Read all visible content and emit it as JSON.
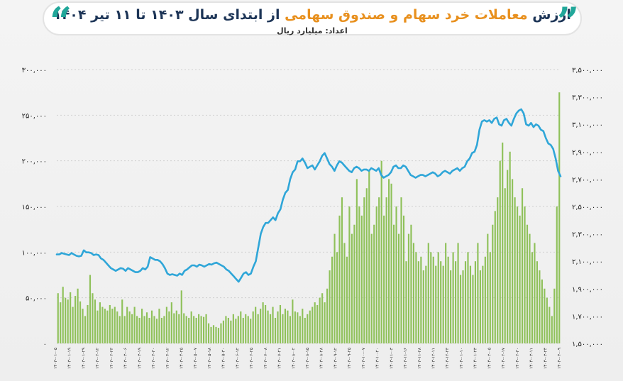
{
  "title": {
    "part1": "ارزش ",
    "part2": "معاملات خرد سهام و صندوق سهامی",
    "part3": " از ابتدای سال ۱۴۰۳ تا ۱۱ تیر ۱۴۰۴"
  },
  "subtitle": "اعداد: میلیارد ریال",
  "colors": {
    "bars": "#8fc15a",
    "line": "#2fa6d8",
    "accent": "#21a79a",
    "title": "#1d3557",
    "highlight": "#e8901e"
  },
  "chart_data": {
    "type": "bar+line",
    "left_axis": {
      "ylim": [
        0,
        300000
      ],
      "ticks": [
        "۰",
        "۵۰,۰۰۰",
        "۱۰۰,۰۰۰",
        "۱۵۰,۰۰۰",
        "۲۰۰,۰۰۰",
        "۲۵۰,۰۰۰",
        "۳۰۰,۰۰۰"
      ]
    },
    "right_axis": {
      "ylim": [
        1500000,
        3500000
      ],
      "ticks": [
        "۱,۵۰۰,۰۰۰",
        "۱,۷۰۰,۰۰۰",
        "۱,۹۰۰,۰۰۰",
        "۲,۱۰۰,۰۰۰",
        "۲,۳۰۰,۰۰۰",
        "۲,۵۰۰,۰۰۰",
        "۲,۷۰۰,۰۰۰",
        "۲,۹۰۰,۰۰۰",
        "۳,۱۰۰,۰۰۰",
        "۳,۳۰۰,۰۰۰",
        "۳,۵۰۰,۰۰۰"
      ]
    },
    "x_tick_labels": [
      "۱۴۰۳-۰۱-۰۵",
      "۱۴۰۳-۰۱-۱۹",
      "۱۴۰۳-۰۱-۲۹",
      "۱۴۰۳-۰۲-۱۲",
      "۱۴۰۳-۰۲-۲۳",
      "۱۴۰۳-۰۳-۰۶",
      "۱۴۰۳-۰۳-۱۹",
      "۱۴۰۳-۰۳-۳۰",
      "۱۴۰۳-۰۴-۱۲",
      "۱۴۰۳-۰۴-۲۵",
      "۱۴۰۳-۰۵-۰۷",
      "۱۴۰۳-۰۵-۱۸",
      "۱۴۰۳-۰۵-۳۰",
      "۱۴۰۳-۰۶-۱۲",
      "۱۴۰۳-۰۶-۲۵",
      "۱۴۰۳-۰۷-۰۸",
      "۱۴۰۳-۰۷-۲۱",
      "۱۴۰۳-۰۸-۰۲",
      "۱۴۰۳-۰۸-۱۵",
      "۱۴۰۳-۰۸-۲۸",
      "۱۴۰۳-۰۹-۱۲",
      "۱۴۰۳-۰۹-۲۵",
      "۱۴۰۳-۱۰-۰۷",
      "۱۴۰۳-۱۰-۲۰",
      "۱۴۰۳-۱۱-۰۳",
      "۱۴۰۳-۱۱-۱۶",
      "۱۴۰۳-۱۱-۲۸",
      "۱۴۰۳-۱۲-۱۱",
      "۱۴۰۳-۱۲-۲۳",
      "۱۴۰۴-۰۱-۱۰",
      "۱۴۰۴-۰۱-۲۳",
      "۱۴۰۴-۰۲-۰۵",
      "۱۴۰۴-۰۲-۱۷",
      "۱۴۰۴-۰۲-۳۰",
      "۱۴۰۴-۰۳-۱۱",
      "۱۴۰۴-۰۳-۲۴",
      "۱۴۰۴-۰۴-۰۹"
    ],
    "series": [
      {
        "type": "bar",
        "axis": "left",
        "values": [
          55000,
          45000,
          62000,
          50000,
          48000,
          56000,
          40000,
          52000,
          60000,
          46000,
          38000,
          30000,
          42000,
          75000,
          55000,
          48000,
          36000,
          45000,
          40000,
          38000,
          36000,
          42000,
          38000,
          40000,
          35000,
          30000,
          48000,
          30000,
          40000,
          35000,
          32000,
          40000,
          30000,
          28000,
          38000,
          30000,
          34000,
          28000,
          36000,
          30000,
          27000,
          38000,
          28000,
          30000,
          40000,
          35000,
          45000,
          33000,
          36000,
          32000,
          58000,
          33000,
          30000,
          28000,
          35000,
          30000,
          28000,
          32000,
          30000,
          29000,
          32000,
          22000,
          18000,
          20000,
          18000,
          17000,
          22000,
          25000,
          30000,
          28000,
          25000,
          32000,
          27000,
          30000,
          35000,
          28000,
          32000,
          30000,
          27000,
          35000,
          40000,
          32000,
          38000,
          45000,
          42000,
          36000,
          32000,
          40000,
          28000,
          35000,
          42000,
          32000,
          38000,
          36000,
          30000,
          48000,
          35000,
          34000,
          30000,
          38000,
          28000,
          32000,
          36000,
          40000,
          45000,
          42000,
          50000,
          55000,
          45000,
          60000,
          80000,
          95000,
          120000,
          100000,
          140000,
          160000,
          110000,
          95000,
          150000,
          120000,
          130000,
          180000,
          150000,
          140000,
          160000,
          170000,
          190000,
          120000,
          130000,
          150000,
          160000,
          200000,
          140000,
          160000,
          180000,
          175000,
          130000,
          150000,
          120000,
          160000,
          140000,
          90000,
          120000,
          130000,
          110000,
          100000,
          90000,
          95000,
          80000,
          85000,
          110000,
          100000,
          95000,
          85000,
          100000,
          90000,
          85000,
          110000,
          95000,
          80000,
          100000,
          90000,
          110000,
          75000,
          80000,
          90000,
          100000,
          85000,
          75000,
          90000,
          110000,
          80000,
          85000,
          95000,
          120000,
          100000,
          130000,
          145000,
          160000,
          200000,
          220000,
          170000,
          190000,
          210000,
          180000,
          160000,
          150000,
          140000,
          170000,
          150000,
          130000,
          120000,
          100000,
          110000,
          90000,
          80000,
          70000,
          60000,
          50000,
          40000,
          30000,
          60000,
          150000,
          275000
        ],
        "color": "#8fc15a"
      },
      {
        "type": "line",
        "axis": "right",
        "values": [
          2150000,
          2150000,
          2160000,
          2155000,
          2150000,
          2145000,
          2160000,
          2150000,
          2140000,
          2135000,
          2140000,
          2180000,
          2165000,
          2165000,
          2160000,
          2145000,
          2150000,
          2145000,
          2120000,
          2110000,
          2090000,
          2070000,
          2050000,
          2040000,
          2030000,
          2040000,
          2050000,
          2045000,
          2030000,
          2050000,
          2040000,
          2030000,
          2020000,
          2020000,
          2030000,
          2050000,
          2040000,
          2060000,
          2130000,
          2120000,
          2110000,
          2110000,
          2100000,
          2080000,
          2050000,
          2010000,
          2000000,
          2005000,
          2000000,
          1995000,
          2010000,
          2000000,
          2030000,
          2040000,
          2055000,
          2070000,
          2070000,
          2060000,
          2075000,
          2070000,
          2060000,
          2070000,
          2080000,
          2075000,
          2085000,
          2090000,
          2080000,
          2070000,
          2060000,
          2040000,
          2030000,
          2010000,
          1990000,
          1970000,
          1950000,
          1980000,
          2010000,
          2020000,
          2000000,
          2010000,
          2060000,
          2100000,
          2200000,
          2300000,
          2350000,
          2380000,
          2380000,
          2400000,
          2420000,
          2400000,
          2450000,
          2480000,
          2550000,
          2600000,
          2620000,
          2700000,
          2750000,
          2770000,
          2830000,
          2830000,
          2850000,
          2820000,
          2780000,
          2790000,
          2800000,
          2770000,
          2800000,
          2830000,
          2870000,
          2890000,
          2850000,
          2810000,
          2790000,
          2760000,
          2800000,
          2830000,
          2820000,
          2800000,
          2780000,
          2760000,
          2750000,
          2780000,
          2790000,
          2780000,
          2760000,
          2770000,
          2770000,
          2760000,
          2780000,
          2770000,
          2760000,
          2780000,
          2730000,
          2710000,
          2720000,
          2730000,
          2750000,
          2790000,
          2800000,
          2780000,
          2780000,
          2800000,
          2790000,
          2760000,
          2730000,
          2720000,
          2710000,
          2720000,
          2730000,
          2730000,
          2720000,
          2730000,
          2740000,
          2750000,
          2740000,
          2720000,
          2730000,
          2750000,
          2760000,
          2750000,
          2740000,
          2760000,
          2770000,
          2780000,
          2760000,
          2780000,
          2790000,
          2830000,
          2850000,
          2890000,
          2900000,
          2950000,
          3060000,
          3120000,
          3130000,
          3120000,
          3130000,
          3110000,
          3140000,
          3150000,
          3100000,
          3090000,
          3130000,
          3140000,
          3110000,
          3090000,
          3140000,
          3180000,
          3200000,
          3210000,
          3180000,
          3100000,
          3090000,
          3110000,
          3080000,
          3100000,
          3090000,
          3060000,
          3050000,
          3000000,
          2960000,
          2950000,
          2920000,
          2850000,
          2760000,
          2720000
        ]
      }
    ]
  }
}
